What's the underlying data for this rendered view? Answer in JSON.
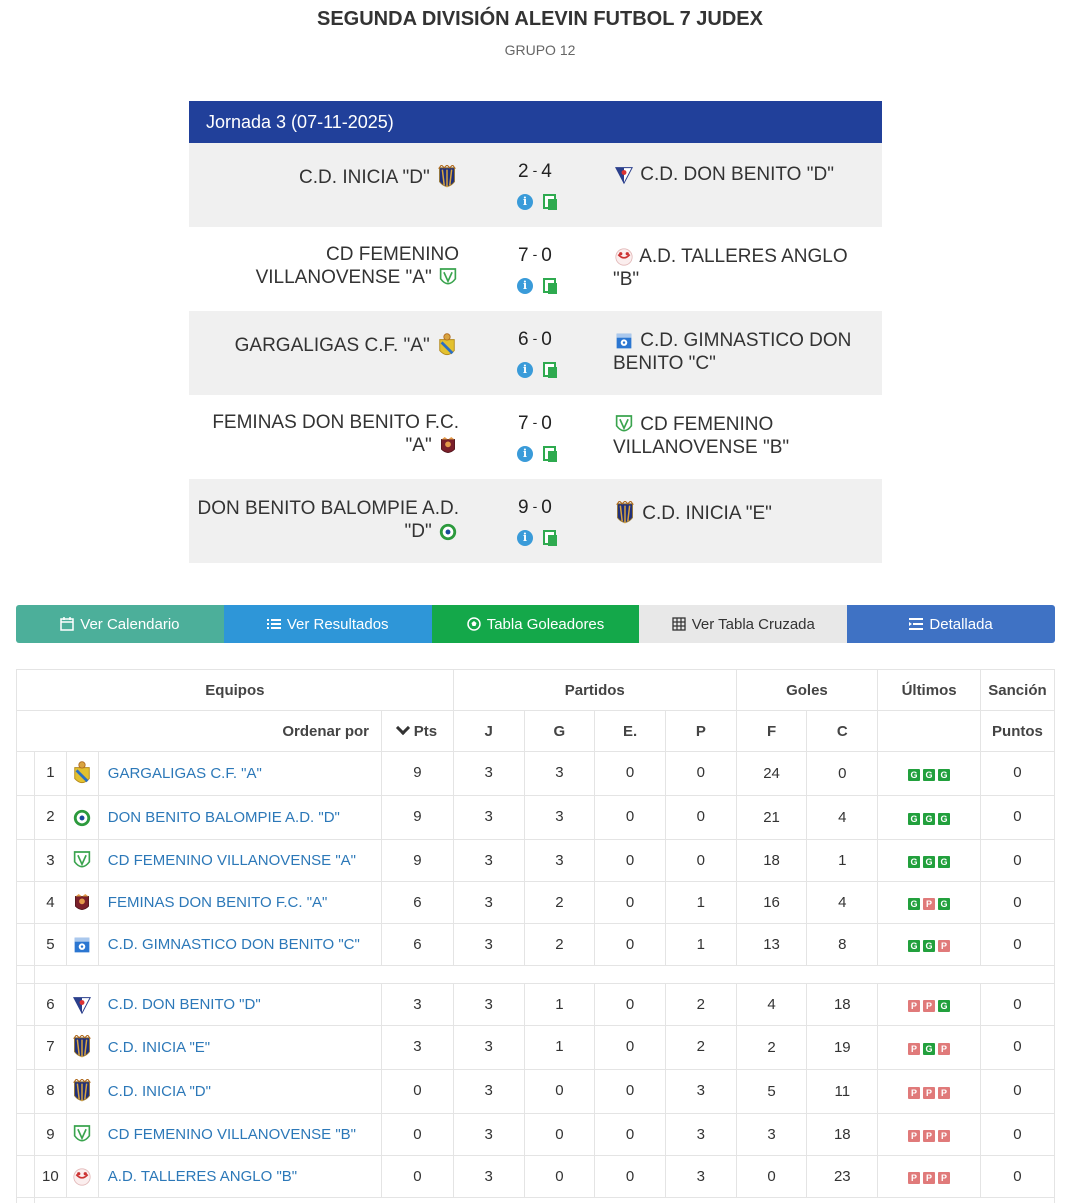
{
  "header": {
    "title": "SEGUNDA DIVISIÓN ALEVIN FUTBOL 7 JUDEX",
    "subtitle": "GRUPO 12"
  },
  "jornada": {
    "title": "Jornada 3 (07-11-2025)",
    "matches": [
      {
        "home": "C.D. INICIA \"D\"",
        "home_goals": "2",
        "away_goals": "4",
        "away": "C.D. DON BENITO \"D\""
      },
      {
        "home": "CD FEMENINO VILLANOVENSE \"A\"",
        "home_goals": "7",
        "away_goals": "0",
        "away": "A.D. TALLERES ANGLO \"B\""
      },
      {
        "home": "GARGALIGAS C.F. \"A\"",
        "home_goals": "6",
        "away_goals": "0",
        "away": "C.D. GIMNASTICO DON BENITO \"C\""
      },
      {
        "home": "FEMINAS DON BENITO F.C. \"A\"",
        "home_goals": "7",
        "away_goals": "0",
        "away": "CD FEMENINO VILLANOVENSE \"B\""
      },
      {
        "home": "DON BENITO BALOMPIE A.D. \"D\"",
        "home_goals": "9",
        "away_goals": "0",
        "away": "C.D. INICIA \"E\""
      }
    ]
  },
  "buttons": {
    "calendar": "Ver Calendario",
    "results": "Ver Resultados",
    "scorers": "Tabla Goleadores",
    "cross": "Ver Tabla Cruzada",
    "detailed": "Detallada"
  },
  "table": {
    "group_headers": {
      "teams": "Equipos",
      "matches": "Partidos",
      "goals": "Goles",
      "last": "Últimos",
      "sanction": "Sanción"
    },
    "sub_headers": {
      "order_by": "Ordenar por",
      "pts": "Pts",
      "j": "J",
      "g": "G",
      "e": "E.",
      "p": "P",
      "f": "F",
      "c": "C",
      "points": "Puntos"
    },
    "rows": [
      {
        "pos": "1",
        "team": "GARGALIGAS C.F. \"A\"",
        "pts": "9",
        "j": "3",
        "g": "3",
        "e": "0",
        "p": "0",
        "f": "24",
        "c": "0",
        "form": [
          "G",
          "G",
          "G"
        ],
        "sanction": "0",
        "crest": "gargaligas"
      },
      {
        "pos": "2",
        "team": "DON BENITO BALOMPIE A.D. \"D\"",
        "pts": "9",
        "j": "3",
        "g": "3",
        "e": "0",
        "p": "0",
        "f": "21",
        "c": "4",
        "form": [
          "G",
          "G",
          "G"
        ],
        "sanction": "0",
        "crest": "balompie"
      },
      {
        "pos": "3",
        "team": "CD FEMENINO VILLANOVENSE \"A\"",
        "pts": "9",
        "j": "3",
        "g": "3",
        "e": "0",
        "p": "0",
        "f": "18",
        "c": "1",
        "form": [
          "G",
          "G",
          "G"
        ],
        "sanction": "0",
        "crest": "villanovense"
      },
      {
        "pos": "4",
        "team": "FEMINAS DON BENITO F.C. \"A\"",
        "pts": "6",
        "j": "3",
        "g": "2",
        "e": "0",
        "p": "1",
        "f": "16",
        "c": "4",
        "form": [
          "G",
          "P",
          "G"
        ],
        "sanction": "0",
        "crest": "feminas"
      },
      {
        "pos": "5",
        "team": "C.D. GIMNASTICO DON BENITO \"C\"",
        "pts": "6",
        "j": "3",
        "g": "2",
        "e": "0",
        "p": "1",
        "f": "13",
        "c": "8",
        "form": [
          "G",
          "G",
          "P"
        ],
        "sanction": "0",
        "crest": "gimnastico"
      },
      {
        "pos": "6",
        "team": "C.D. DON BENITO \"D\"",
        "pts": "3",
        "j": "3",
        "g": "1",
        "e": "0",
        "p": "2",
        "f": "4",
        "c": "18",
        "form": [
          "P",
          "P",
          "G"
        ],
        "sanction": "0",
        "crest": "donbenito"
      },
      {
        "pos": "7",
        "team": "C.D. INICIA \"E\"",
        "pts": "3",
        "j": "3",
        "g": "1",
        "e": "0",
        "p": "2",
        "f": "2",
        "c": "19",
        "form": [
          "P",
          "G",
          "P"
        ],
        "sanction": "0",
        "crest": "inicia"
      },
      {
        "pos": "8",
        "team": "C.D. INICIA \"D\"",
        "pts": "0",
        "j": "3",
        "g": "0",
        "e": "0",
        "p": "3",
        "f": "5",
        "c": "11",
        "form": [
          "P",
          "P",
          "P"
        ],
        "sanction": "0",
        "crest": "inicia"
      },
      {
        "pos": "9",
        "team": "CD FEMENINO VILLANOVENSE \"B\"",
        "pts": "0",
        "j": "3",
        "g": "0",
        "e": "0",
        "p": "3",
        "f": "3",
        "c": "18",
        "form": [
          "P",
          "P",
          "P"
        ],
        "sanction": "0",
        "crest": "villanovense"
      },
      {
        "pos": "10",
        "team": "A.D. TALLERES ANGLO \"B\"",
        "pts": "0",
        "j": "3",
        "g": "0",
        "e": "0",
        "p": "3",
        "f": "0",
        "c": "23",
        "form": [
          "P",
          "P",
          "P"
        ],
        "sanction": "0",
        "crest": "talleres"
      }
    ]
  }
}
